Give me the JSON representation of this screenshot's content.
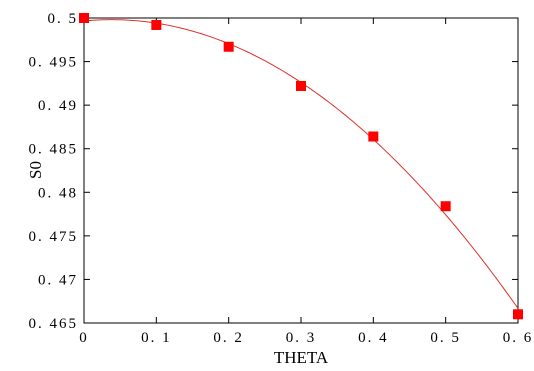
{
  "chart_data": {
    "type": "scatter",
    "xlabel": "THETA",
    "ylabel": "S0",
    "xlim": [
      0,
      0.6
    ],
    "ylim": [
      0.465,
      0.5
    ],
    "x_ticks": [
      "0",
      "0. 1",
      "0. 2",
      "0. 3",
      "0. 4",
      "0. 5",
      "0. 6"
    ],
    "y_ticks": [
      "0. 5",
      "0. 495",
      "0. 49",
      "0. 485",
      "0. 48",
      "0. 475",
      "0. 47",
      "0. 465"
    ],
    "grid": false,
    "series": [
      {
        "kind": "markers",
        "marker": "square",
        "color": "#ff0000",
        "x": [
          0,
          0.1,
          0.2,
          0.3,
          0.4,
          0.5,
          0.6
        ],
        "y": [
          0.5,
          0.4992,
          0.4967,
          0.4922,
          0.4864,
          0.4784,
          0.466
        ]
      },
      {
        "kind": "fit-curve",
        "color": "#e0302a",
        "x": [
          0,
          0.1,
          0.2,
          0.3,
          0.4,
          0.5,
          0.6
        ],
        "y": [
          0.5,
          0.4992,
          0.4967,
          0.4922,
          0.4864,
          0.4784,
          0.466
        ]
      }
    ]
  }
}
